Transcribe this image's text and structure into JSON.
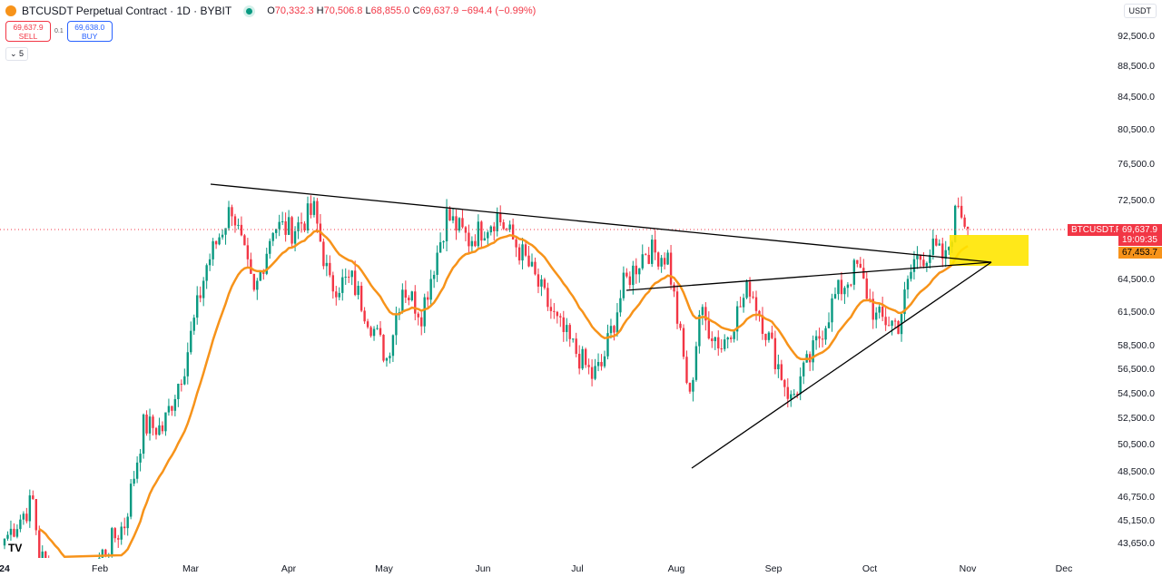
{
  "header": {
    "symbol": "BTCUSDT Perpetual Contract · 1D · BYBIT",
    "open": "70,332.3",
    "high": "70,506.8",
    "low": "68,855.0",
    "close": "69,637.9",
    "change": "−694.4 (−0.99%)",
    "o": "O",
    "h": "H",
    "l": "L",
    "c": "C"
  },
  "trade": {
    "sell_price": "69,637.9",
    "sell_label": "SELL",
    "spread": "0.1",
    "buy_price": "69,638.0",
    "buy_label": "BUY",
    "collapse": "5"
  },
  "currency": "USDT",
  "tags": {
    "symbol": "BTCUSDT.P",
    "price": "69,637.9",
    "countdown": "19:09:35",
    "ma": "67,453.7"
  },
  "colors": {
    "up": "#089981",
    "down": "#f23645",
    "ma": "#f7931a",
    "zone": "#ffe600"
  },
  "chart_data": {
    "type": "candlestick",
    "scale": "log",
    "ylim": [
      42800,
      95000
    ],
    "y_ticks": [
      "92,500.0",
      "88,500.0",
      "84,500.0",
      "80,500.0",
      "76,500.0",
      "72,500.0",
      "64,500.0",
      "61,500.0",
      "58,500.0",
      "56,500.0",
      "54,500.0",
      "52,500.0",
      "50,500.0",
      "48,500.0",
      "46,750.0",
      "45,150.0",
      "43,650.0"
    ],
    "x_ticks": [
      "24",
      "Feb",
      "Mar",
      "Apr",
      "May",
      "Jun",
      "Jul",
      "Aug",
      "Sep",
      "Oct",
      "Nov",
      "Dec"
    ],
    "close_keypoints": [
      [
        "2024-01-01",
        44000
      ],
      [
        "2024-01-10",
        46500
      ],
      [
        "2024-01-12",
        43000
      ],
      [
        "2024-01-22",
        40000
      ],
      [
        "2024-02-01",
        43000
      ],
      [
        "2024-02-08",
        45000
      ],
      [
        "2024-02-14",
        52000
      ],
      [
        "2024-02-20",
        51800
      ],
      [
        "2024-02-27",
        57000
      ],
      [
        "2024-03-05",
        66000
      ],
      [
        "2024-03-13",
        72000
      ],
      [
        "2024-03-20",
        63000
      ],
      [
        "2024-03-26",
        70000
      ],
      [
        "2024-04-01",
        69500
      ],
      [
        "2024-04-08",
        71500
      ],
      [
        "2024-04-13",
        64000
      ],
      [
        "2024-04-20",
        64500
      ],
      [
        "2024-05-01",
        57500
      ],
      [
        "2024-05-06",
        64000
      ],
      [
        "2024-05-12",
        61500
      ],
      [
        "2024-05-20",
        71000
      ],
      [
        "2024-05-27",
        68500
      ],
      [
        "2024-06-05",
        71000
      ],
      [
        "2024-06-14",
        66500
      ],
      [
        "2024-06-24",
        60500
      ],
      [
        "2024-07-05",
        56000
      ],
      [
        "2024-07-08",
        56800
      ],
      [
        "2024-07-15",
        64000
      ],
      [
        "2024-07-22",
        67500
      ],
      [
        "2024-07-29",
        66800
      ],
      [
        "2024-08-05",
        54000
      ],
      [
        "2024-08-08",
        61500
      ],
      [
        "2024-08-15",
        58500
      ],
      [
        "2024-08-24",
        64000
      ],
      [
        "2024-09-06",
        54000
      ],
      [
        "2024-09-13",
        58000
      ],
      [
        "2024-09-20",
        63000
      ],
      [
        "2024-09-27",
        65800
      ],
      [
        "2024-10-03",
        61000
      ],
      [
        "2024-10-10",
        60500
      ],
      [
        "2024-10-15",
        66500
      ],
      [
        "2024-10-21",
        67500
      ],
      [
        "2024-10-25",
        66500
      ],
      [
        "2024-10-29",
        72500
      ],
      [
        "2024-11-01",
        69637.9
      ]
    ],
    "last_price": 69637.9,
    "ma_last": 67453.7
  }
}
